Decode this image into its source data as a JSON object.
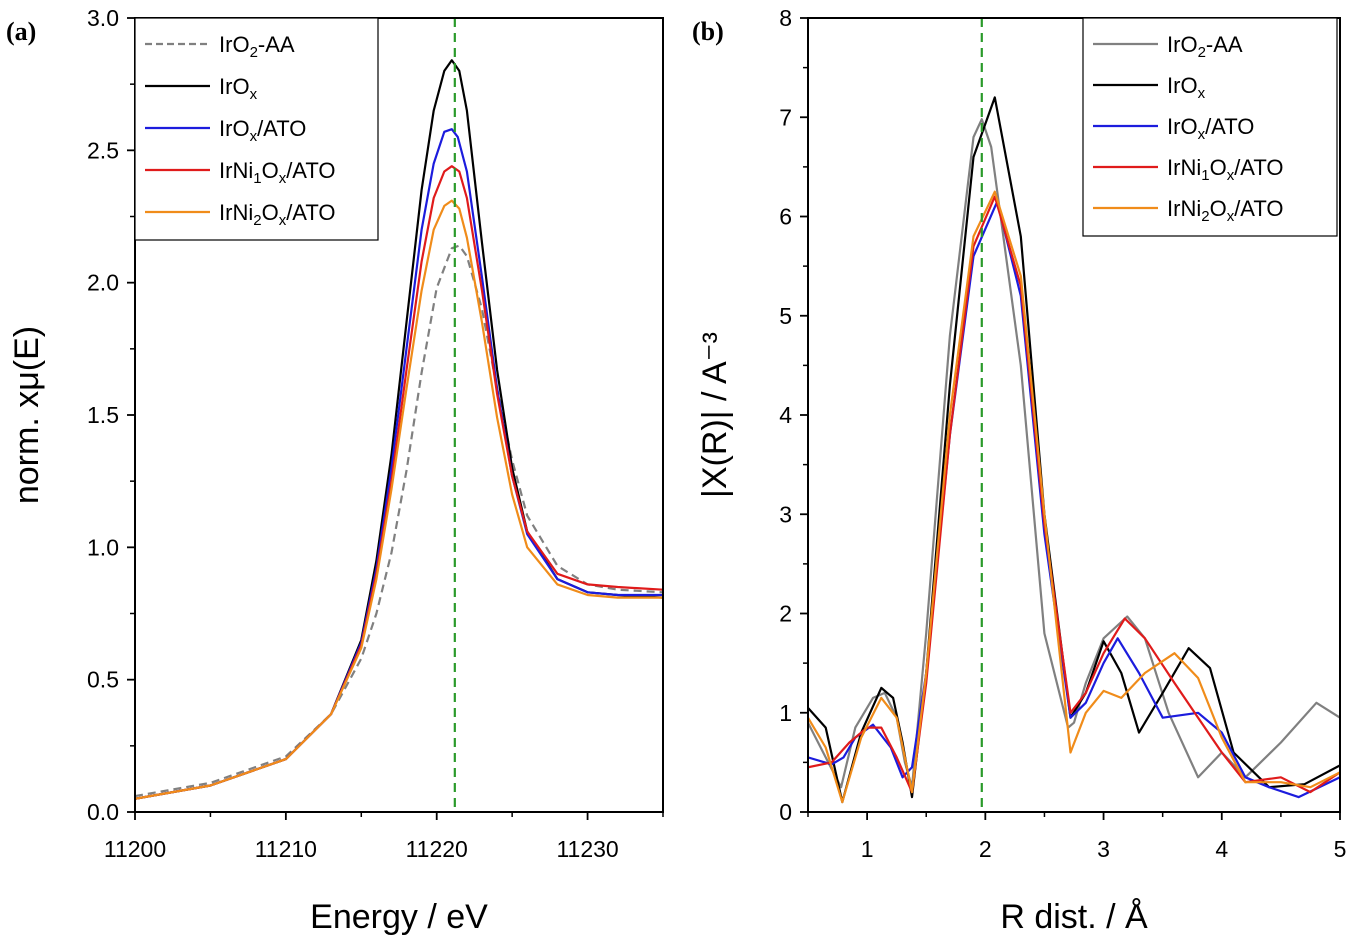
{
  "figure": {
    "panels": [
      {
        "id": "a",
        "label": "(a)"
      },
      {
        "id": "b",
        "label": "(b)"
      }
    ]
  },
  "chart_data": [
    {
      "type": "line",
      "panel_label": "(a)",
      "xlabel": "Energy / eV",
      "ylabel": "norm. xμ(E)",
      "xlim": [
        11200,
        11235
      ],
      "ylim": [
        0,
        3.0
      ],
      "xticks": [
        11200,
        11210,
        11220,
        11230
      ],
      "yticks": [
        0.0,
        0.5,
        1.0,
        1.5,
        2.0,
        2.5,
        3.0
      ],
      "ytick_labels": [
        "0.0",
        "0.5",
        "1.0",
        "1.5",
        "2.0",
        "2.5",
        "3.0"
      ],
      "grid": false,
      "legend_position": "top-left",
      "reference_line": {
        "x": 11221.2,
        "style": "dashed",
        "color": "#2a9a2a"
      },
      "series": [
        {
          "name": "IrO2-AA",
          "legend_parts": [
            [
              "IrO",
              ""
            ],
            [
              "2",
              "sub"
            ],
            [
              "-AA",
              ""
            ]
          ],
          "color": "#808080",
          "dash": true,
          "x": [
            11200,
            11205,
            11210,
            11213,
            11215,
            11216,
            11217,
            11218,
            11219,
            11220,
            11221,
            11221.5,
            11222,
            11223,
            11224,
            11225,
            11226,
            11228,
            11230,
            11232,
            11235
          ],
          "y": [
            0.06,
            0.11,
            0.21,
            0.37,
            0.58,
            0.75,
            0.98,
            1.29,
            1.66,
            1.98,
            2.13,
            2.14,
            2.1,
            1.9,
            1.6,
            1.33,
            1.12,
            0.93,
            0.86,
            0.84,
            0.83
          ]
        },
        {
          "name": "IrOx",
          "legend_parts": [
            [
              "IrO",
              ""
            ],
            [
              "x",
              "sub"
            ]
          ],
          "color": "#000000",
          "dash": false,
          "x": [
            11200,
            11205,
            11210,
            11213,
            11215,
            11216,
            11217,
            11218,
            11219,
            11219.8,
            11220.5,
            11221,
            11221.5,
            11222,
            11223,
            11224,
            11225,
            11226,
            11228,
            11230,
            11232,
            11235
          ],
          "y": [
            0.05,
            0.1,
            0.2,
            0.37,
            0.65,
            0.95,
            1.35,
            1.85,
            2.35,
            2.65,
            2.8,
            2.84,
            2.8,
            2.65,
            2.15,
            1.67,
            1.3,
            1.06,
            0.88,
            0.83,
            0.82,
            0.81
          ]
        },
        {
          "name": "IrOx/ATO",
          "legend_parts": [
            [
              "IrO",
              ""
            ],
            [
              "x",
              "sub"
            ],
            [
              "/ATO",
              ""
            ]
          ],
          "color": "#1c1cdd",
          "dash": false,
          "x": [
            11200,
            11205,
            11210,
            11213,
            11215,
            11216,
            11217,
            11218,
            11219,
            11219.8,
            11220.5,
            11221,
            11221.4,
            11222,
            11223,
            11224,
            11225,
            11226,
            11228,
            11230,
            11232,
            11235
          ],
          "y": [
            0.05,
            0.1,
            0.2,
            0.37,
            0.64,
            0.92,
            1.3,
            1.75,
            2.2,
            2.45,
            2.57,
            2.58,
            2.55,
            2.42,
            2.02,
            1.6,
            1.27,
            1.05,
            0.88,
            0.83,
            0.82,
            0.82
          ]
        },
        {
          "name": "IrNi1Ox/ATO",
          "legend_parts": [
            [
              "IrNi",
              ""
            ],
            [
              "1",
              "sub"
            ],
            [
              "O",
              ""
            ],
            [
              "x",
              "sub"
            ],
            [
              "/ATO",
              ""
            ]
          ],
          "color": "#e01b1b",
          "dash": false,
          "x": [
            11200,
            11205,
            11210,
            11213,
            11215,
            11216,
            11217,
            11218,
            11219,
            11219.8,
            11220.5,
            11221,
            11221.5,
            11222,
            11223,
            11224,
            11225,
            11226,
            11228,
            11230,
            11232,
            11235
          ],
          "y": [
            0.05,
            0.1,
            0.2,
            0.37,
            0.63,
            0.9,
            1.25,
            1.67,
            2.08,
            2.32,
            2.42,
            2.44,
            2.42,
            2.32,
            1.97,
            1.58,
            1.27,
            1.06,
            0.9,
            0.86,
            0.85,
            0.84
          ]
        },
        {
          "name": "IrNi2Ox/ATO",
          "legend_parts": [
            [
              "IrNi",
              ""
            ],
            [
              "2",
              "sub"
            ],
            [
              "O",
              ""
            ],
            [
              "x",
              "sub"
            ],
            [
              "/ATO",
              ""
            ]
          ],
          "color": "#f08c1a",
          "dash": false,
          "x": [
            11200,
            11205,
            11210,
            11213,
            11215,
            11216,
            11217,
            11218,
            11219,
            11219.8,
            11220.5,
            11221,
            11221.5,
            11222,
            11223,
            11224,
            11225,
            11226,
            11228,
            11230,
            11232,
            11235
          ],
          "y": [
            0.05,
            0.1,
            0.2,
            0.37,
            0.62,
            0.88,
            1.22,
            1.6,
            1.97,
            2.2,
            2.29,
            2.31,
            2.28,
            2.17,
            1.85,
            1.49,
            1.2,
            1.0,
            0.86,
            0.82,
            0.81,
            0.81
          ]
        }
      ]
    },
    {
      "type": "line",
      "panel_label": "(b)",
      "xlabel": "R dist. / Å",
      "ylabel": "|X(R)| / A⁻³",
      "xlim": [
        0.5,
        5
      ],
      "ylim": [
        0,
        8
      ],
      "xticks": [
        1,
        2,
        3,
        4,
        5
      ],
      "yticks": [
        0,
        1,
        2,
        3,
        4,
        5,
        6,
        7,
        8
      ],
      "grid": false,
      "legend_position": "top-right",
      "reference_line": {
        "x": 1.97,
        "style": "dashed",
        "color": "#2a9a2a"
      },
      "series": [
        {
          "name": "IrO2-AA",
          "legend_parts": [
            [
              "IrO",
              ""
            ],
            [
              "2",
              "sub"
            ],
            [
              "-AA",
              ""
            ]
          ],
          "color": "#808080",
          "dash": false,
          "x": [
            0.5,
            0.65,
            0.78,
            0.9,
            1.05,
            1.15,
            1.25,
            1.32,
            1.38,
            1.5,
            1.7,
            1.9,
            1.97,
            2.05,
            2.3,
            2.5,
            2.7,
            2.75,
            2.85,
            3.0,
            3.2,
            3.35,
            3.55,
            3.8,
            4.0,
            4.2,
            4.5,
            4.8,
            5.0
          ],
          "y": [
            0.9,
            0.55,
            0.25,
            0.85,
            1.15,
            1.2,
            0.95,
            0.5,
            0.25,
            1.8,
            4.8,
            6.8,
            6.98,
            6.7,
            4.5,
            1.8,
            0.85,
            0.9,
            1.3,
            1.75,
            1.97,
            1.75,
            1.0,
            0.35,
            0.6,
            0.35,
            0.7,
            1.1,
            0.95
          ]
        },
        {
          "name": "IrOx",
          "legend_parts": [
            [
              "IrO",
              ""
            ],
            [
              "x",
              "sub"
            ]
          ],
          "color": "#000000",
          "dash": false,
          "x": [
            0.5,
            0.65,
            0.79,
            0.95,
            1.12,
            1.22,
            1.3,
            1.38,
            1.5,
            1.7,
            1.9,
            2.08,
            2.3,
            2.5,
            2.72,
            2.85,
            3.0,
            3.15,
            3.3,
            3.5,
            3.72,
            3.9,
            4.1,
            4.4,
            4.7,
            5.0
          ],
          "y": [
            1.05,
            0.85,
            0.1,
            0.8,
            1.25,
            1.15,
            0.7,
            0.15,
            1.4,
            4.3,
            6.6,
            7.2,
            5.8,
            3.0,
            0.95,
            1.2,
            1.72,
            1.4,
            0.8,
            1.2,
            1.65,
            1.45,
            0.6,
            0.25,
            0.28,
            0.47
          ]
        },
        {
          "name": "IrOx/ATO",
          "legend_parts": [
            [
              "IrO",
              ""
            ],
            [
              "x",
              "sub"
            ],
            [
              "/ATO",
              ""
            ]
          ],
          "color": "#1c1cdd",
          "dash": false,
          "x": [
            0.5,
            0.7,
            0.8,
            0.9,
            1.05,
            1.2,
            1.3,
            1.38,
            1.5,
            1.7,
            1.9,
            2.1,
            2.3,
            2.5,
            2.72,
            2.85,
            3.0,
            3.12,
            3.3,
            3.5,
            3.8,
            4.0,
            4.2,
            4.4,
            4.65,
            5.0
          ],
          "y": [
            0.55,
            0.48,
            0.55,
            0.75,
            0.88,
            0.65,
            0.35,
            0.45,
            1.4,
            3.8,
            5.6,
            6.15,
            5.2,
            2.8,
            0.95,
            1.1,
            1.5,
            1.75,
            1.4,
            0.95,
            1.0,
            0.8,
            0.35,
            0.25,
            0.15,
            0.35
          ]
        },
        {
          "name": "IrNi1Ox/ATO",
          "legend_parts": [
            [
              "IrNi",
              ""
            ],
            [
              "1",
              "sub"
            ],
            [
              "O",
              ""
            ],
            [
              "x",
              "sub"
            ],
            [
              "/ATO",
              ""
            ]
          ],
          "color": "#e01b1b",
          "dash": false,
          "x": [
            0.5,
            0.7,
            0.85,
            1.0,
            1.12,
            1.25,
            1.38,
            1.5,
            1.7,
            1.9,
            2.08,
            2.3,
            2.5,
            2.72,
            2.85,
            3.0,
            3.18,
            3.35,
            3.6,
            3.8,
            4.0,
            4.2,
            4.5,
            4.75,
            5.0
          ],
          "y": [
            0.45,
            0.5,
            0.7,
            0.85,
            0.85,
            0.55,
            0.2,
            1.3,
            3.8,
            5.7,
            6.2,
            5.3,
            2.9,
            1.0,
            1.2,
            1.6,
            1.95,
            1.75,
            1.3,
            0.95,
            0.6,
            0.3,
            0.35,
            0.2,
            0.4
          ]
        },
        {
          "name": "IrNi2Ox/ATO",
          "legend_parts": [
            [
              "IrNi",
              ""
            ],
            [
              "2",
              "sub"
            ],
            [
              "O",
              ""
            ],
            [
              "x",
              "sub"
            ],
            [
              "/ATO",
              ""
            ]
          ],
          "color": "#f08c1a",
          "dash": false,
          "x": [
            0.5,
            0.65,
            0.79,
            0.95,
            1.12,
            1.25,
            1.38,
            1.5,
            1.7,
            1.9,
            2.08,
            2.3,
            2.5,
            2.72,
            2.85,
            3.0,
            3.15,
            3.35,
            3.6,
            3.8,
            4.0,
            4.2,
            4.5,
            4.75,
            5.0
          ],
          "y": [
            0.95,
            0.65,
            0.1,
            0.75,
            1.15,
            0.95,
            0.2,
            1.4,
            4.0,
            5.8,
            6.25,
            5.4,
            3.0,
            0.6,
            1.0,
            1.22,
            1.15,
            1.4,
            1.6,
            1.35,
            0.75,
            0.3,
            0.3,
            0.25,
            0.4
          ]
        }
      ]
    }
  ]
}
